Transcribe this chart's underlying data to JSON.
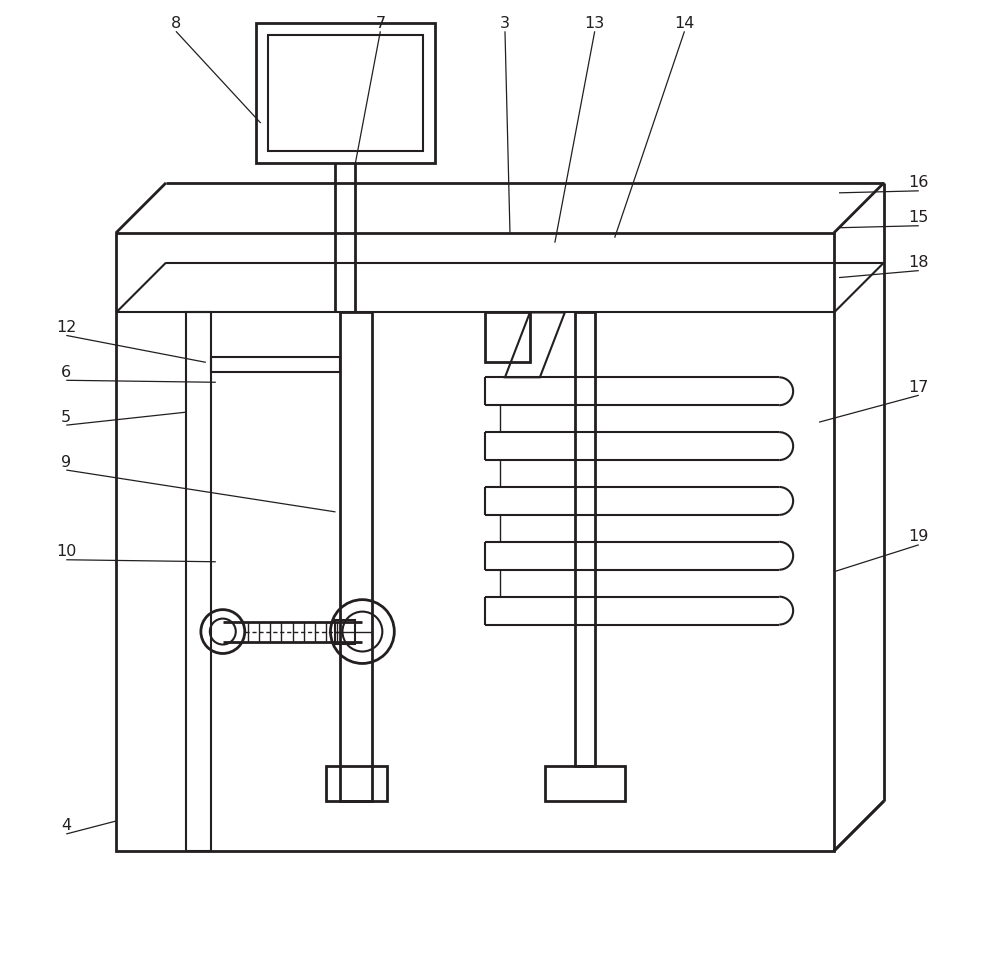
{
  "bg_color": "#ffffff",
  "line_color": "#231f20",
  "lw_thin": 1.0,
  "lw_med": 1.5,
  "lw_thick": 2.0,
  "fig_width": 10.0,
  "fig_height": 9.57
}
